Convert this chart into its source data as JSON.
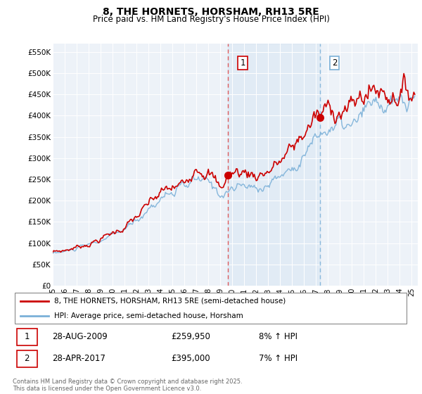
{
  "title": "8, THE HORNETS, HORSHAM, RH13 5RE",
  "subtitle": "Price paid vs. HM Land Registry's House Price Index (HPI)",
  "ylabel_ticks": [
    "£0",
    "£50K",
    "£100K",
    "£150K",
    "£200K",
    "£250K",
    "£300K",
    "£350K",
    "£400K",
    "£450K",
    "£500K",
    "£550K"
  ],
  "ytick_values": [
    0,
    50000,
    100000,
    150000,
    200000,
    250000,
    300000,
    350000,
    400000,
    450000,
    500000,
    550000
  ],
  "ylim": [
    0,
    570000
  ],
  "xlim_start": 1995.0,
  "xlim_end": 2025.5,
  "hpi_color": "#7ab0d8",
  "price_color": "#cc0000",
  "plot_bg_color": "#edf2f8",
  "legend_label_price": "8, THE HORNETS, HORSHAM, RH13 5RE (semi-detached house)",
  "legend_label_hpi": "HPI: Average price, semi-detached house, Horsham",
  "sale1_x": 2009.65,
  "sale1_y": 259950,
  "sale1_label": "1",
  "sale2_x": 2017.32,
  "sale2_y": 395000,
  "sale2_label": "2",
  "footnote": "Contains HM Land Registry data © Crown copyright and database right 2025.\nThis data is licensed under the Open Government Licence v3.0."
}
